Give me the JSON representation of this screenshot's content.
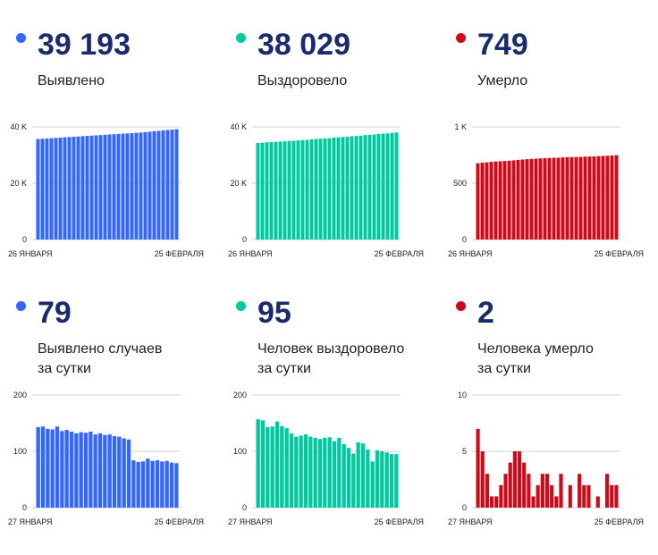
{
  "panels": [
    {
      "id": "total-cases",
      "value": "39 193",
      "label_lines": [
        "Выявлено"
      ],
      "color": "#3366ff",
      "chart_data": {
        "type": "bar",
        "x_start_label": "26 ЯНВАРЯ",
        "x_end_label": "25 ФЕВРАЛЯ",
        "yticks": [
          0,
          20000,
          40000
        ],
        "ytick_labels": [
          "0",
          "20 K",
          "40 K"
        ],
        "ylim": [
          0,
          40000
        ],
        "values": [
          35700,
          35800,
          35900,
          36000,
          36100,
          36200,
          36300,
          36400,
          36500,
          36600,
          36700,
          36800,
          36900,
          37000,
          37100,
          37200,
          37300,
          37400,
          37500,
          37600,
          37700,
          37800,
          37900,
          38000,
          38100,
          38300,
          38500,
          38600,
          38800,
          38900,
          39000,
          39193
        ]
      }
    },
    {
      "id": "total-recovered",
      "value": "38 029",
      "label_lines": [
        "Выздоровело"
      ],
      "color": "#00c9a0",
      "chart_data": {
        "type": "bar",
        "x_start_label": "26 ЯНВАРЯ",
        "x_end_label": "25 ФЕВРАЛЯ",
        "yticks": [
          0,
          20000,
          40000
        ],
        "ytick_labels": [
          "0",
          "20 K",
          "40 K"
        ],
        "ylim": [
          0,
          40000
        ],
        "values": [
          34300,
          34400,
          34500,
          34600,
          34700,
          34800,
          34900,
          35000,
          35100,
          35200,
          35300,
          35400,
          35600,
          35700,
          35800,
          35900,
          36000,
          36200,
          36300,
          36400,
          36500,
          36700,
          36800,
          36900,
          37100,
          37200,
          37300,
          37500,
          37600,
          37700,
          37900,
          38029
        ]
      }
    },
    {
      "id": "total-deaths",
      "value": "749",
      "label_lines": [
        "Умерло"
      ],
      "color": "#cc0a1a",
      "chart_data": {
        "type": "bar",
        "x_start_label": "26 ЯНВАРЯ",
        "x_end_label": "25 ФЕВРАЛЯ",
        "yticks": [
          0,
          500,
          1000
        ],
        "ytick_labels": [
          "0",
          "500",
          "1 K"
        ],
        "ylim": [
          0,
          1000
        ],
        "values": [
          677,
          682,
          685,
          690,
          693,
          695,
          697,
          700,
          703,
          707,
          710,
          713,
          716,
          718,
          720,
          722,
          724,
          726,
          727,
          729,
          731,
          732,
          733,
          734,
          736,
          737,
          738,
          740,
          742,
          744,
          746,
          749
        ]
      }
    },
    {
      "id": "daily-cases",
      "value": "79",
      "label_lines": [
        "Выявлено случаев",
        "за сутки"
      ],
      "color": "#3366ff",
      "chart_data": {
        "type": "bar",
        "x_start_label": "27 ЯНВАРЯ",
        "x_end_label": "25 ФЕВРАЛЯ",
        "yticks": [
          0,
          100,
          200
        ],
        "ytick_labels": [
          "0",
          "100",
          "200"
        ],
        "ylim": [
          0,
          200
        ],
        "values": [
          143,
          144,
          140,
          139,
          144,
          136,
          138,
          135,
          132,
          134,
          133,
          135,
          130,
          132,
          129,
          130,
          127,
          126,
          123,
          121,
          84,
          81,
          82,
          87,
          83,
          84,
          82,
          83,
          80,
          79
        ]
      }
    },
    {
      "id": "daily-recovered",
      "value": "95",
      "label_lines": [
        "Человек выздоровело",
        "за сутки"
      ],
      "color": "#00c9a0",
      "chart_data": {
        "type": "bar",
        "x_start_label": "27 ЯНВАРЯ",
        "x_end_label": "25 ФЕВРАЛЯ",
        "yticks": [
          0,
          100,
          200
        ],
        "ytick_labels": [
          "0",
          "100",
          "200"
        ],
        "ylim": [
          0,
          200
        ],
        "values": [
          157,
          155,
          143,
          144,
          153,
          145,
          141,
          132,
          126,
          128,
          130,
          126,
          124,
          122,
          124,
          125,
          118,
          124,
          113,
          106,
          96,
          116,
          114,
          103,
          82,
          102,
          100,
          98,
          95,
          95
        ]
      }
    },
    {
      "id": "daily-deaths",
      "value": "2",
      "label_lines": [
        "Человека умерло",
        "за сутки"
      ],
      "color": "#cc0a1a",
      "chart_data": {
        "type": "bar",
        "x_start_label": "27 ЯНВАРЯ",
        "x_end_label": "25 ФЕВРАЛЯ",
        "yticks": [
          0,
          5,
          10
        ],
        "ytick_labels": [
          "0",
          "5",
          "10"
        ],
        "ylim": [
          0,
          10
        ],
        "values": [
          7,
          5,
          3,
          1,
          1,
          2,
          3,
          4,
          5,
          5,
          4,
          3,
          1,
          2,
          3,
          3,
          2,
          1,
          3,
          0,
          2,
          0,
          3,
          2,
          2,
          0,
          1,
          0,
          3,
          2,
          2
        ]
      }
    }
  ]
}
